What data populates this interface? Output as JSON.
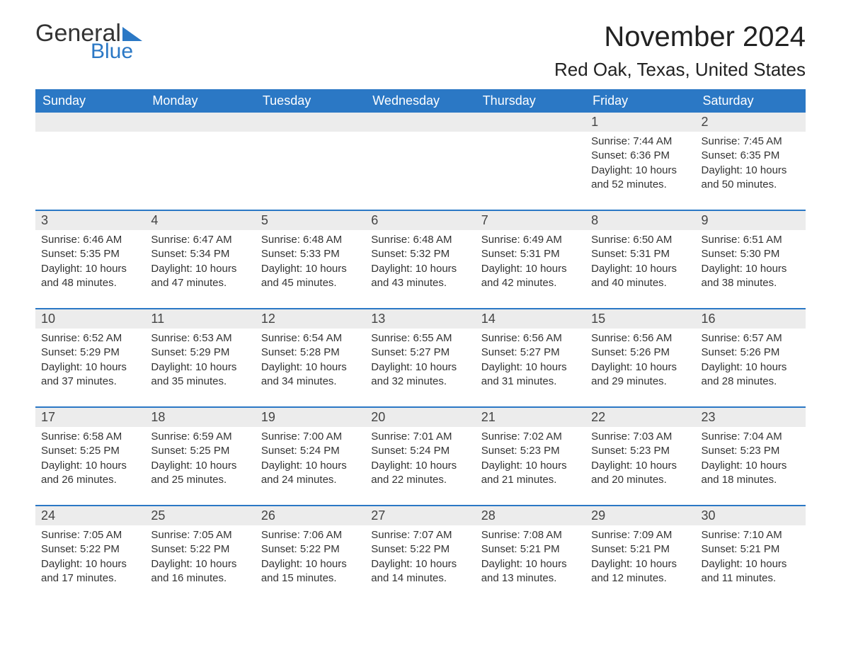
{
  "brand": {
    "word1": "General",
    "word2": "Blue"
  },
  "title": "November 2024",
  "location": "Red Oak, Texas, United States",
  "colors": {
    "accent": "#2b78c5",
    "header_text": "#ffffff",
    "day_header_bg": "#ececec",
    "text": "#333333",
    "background": "#ffffff"
  },
  "typography": {
    "title_fontsize": 40,
    "location_fontsize": 26,
    "weekday_fontsize": 18,
    "daynum_fontsize": 18,
    "body_fontsize": 15,
    "font_family": "Arial"
  },
  "layout": {
    "columns": 7,
    "rows": 5,
    "start_weekday": "Sunday"
  },
  "weekdays": [
    "Sunday",
    "Monday",
    "Tuesday",
    "Wednesday",
    "Thursday",
    "Friday",
    "Saturday"
  ],
  "weeks": [
    [
      {
        "empty": true
      },
      {
        "empty": true
      },
      {
        "empty": true
      },
      {
        "empty": true
      },
      {
        "empty": true
      },
      {
        "day": "1",
        "sunrise": "Sunrise: 7:44 AM",
        "sunset": "Sunset: 6:36 PM",
        "daylight": "Daylight: 10 hours and 52 minutes."
      },
      {
        "day": "2",
        "sunrise": "Sunrise: 7:45 AM",
        "sunset": "Sunset: 6:35 PM",
        "daylight": "Daylight: 10 hours and 50 minutes."
      }
    ],
    [
      {
        "day": "3",
        "sunrise": "Sunrise: 6:46 AM",
        "sunset": "Sunset: 5:35 PM",
        "daylight": "Daylight: 10 hours and 48 minutes."
      },
      {
        "day": "4",
        "sunrise": "Sunrise: 6:47 AM",
        "sunset": "Sunset: 5:34 PM",
        "daylight": "Daylight: 10 hours and 47 minutes."
      },
      {
        "day": "5",
        "sunrise": "Sunrise: 6:48 AM",
        "sunset": "Sunset: 5:33 PM",
        "daylight": "Daylight: 10 hours and 45 minutes."
      },
      {
        "day": "6",
        "sunrise": "Sunrise: 6:48 AM",
        "sunset": "Sunset: 5:32 PM",
        "daylight": "Daylight: 10 hours and 43 minutes."
      },
      {
        "day": "7",
        "sunrise": "Sunrise: 6:49 AM",
        "sunset": "Sunset: 5:31 PM",
        "daylight": "Daylight: 10 hours and 42 minutes."
      },
      {
        "day": "8",
        "sunrise": "Sunrise: 6:50 AM",
        "sunset": "Sunset: 5:31 PM",
        "daylight": "Daylight: 10 hours and 40 minutes."
      },
      {
        "day": "9",
        "sunrise": "Sunrise: 6:51 AM",
        "sunset": "Sunset: 5:30 PM",
        "daylight": "Daylight: 10 hours and 38 minutes."
      }
    ],
    [
      {
        "day": "10",
        "sunrise": "Sunrise: 6:52 AM",
        "sunset": "Sunset: 5:29 PM",
        "daylight": "Daylight: 10 hours and 37 minutes."
      },
      {
        "day": "11",
        "sunrise": "Sunrise: 6:53 AM",
        "sunset": "Sunset: 5:29 PM",
        "daylight": "Daylight: 10 hours and 35 minutes."
      },
      {
        "day": "12",
        "sunrise": "Sunrise: 6:54 AM",
        "sunset": "Sunset: 5:28 PM",
        "daylight": "Daylight: 10 hours and 34 minutes."
      },
      {
        "day": "13",
        "sunrise": "Sunrise: 6:55 AM",
        "sunset": "Sunset: 5:27 PM",
        "daylight": "Daylight: 10 hours and 32 minutes."
      },
      {
        "day": "14",
        "sunrise": "Sunrise: 6:56 AM",
        "sunset": "Sunset: 5:27 PM",
        "daylight": "Daylight: 10 hours and 31 minutes."
      },
      {
        "day": "15",
        "sunrise": "Sunrise: 6:56 AM",
        "sunset": "Sunset: 5:26 PM",
        "daylight": "Daylight: 10 hours and 29 minutes."
      },
      {
        "day": "16",
        "sunrise": "Sunrise: 6:57 AM",
        "sunset": "Sunset: 5:26 PM",
        "daylight": "Daylight: 10 hours and 28 minutes."
      }
    ],
    [
      {
        "day": "17",
        "sunrise": "Sunrise: 6:58 AM",
        "sunset": "Sunset: 5:25 PM",
        "daylight": "Daylight: 10 hours and 26 minutes."
      },
      {
        "day": "18",
        "sunrise": "Sunrise: 6:59 AM",
        "sunset": "Sunset: 5:25 PM",
        "daylight": "Daylight: 10 hours and 25 minutes."
      },
      {
        "day": "19",
        "sunrise": "Sunrise: 7:00 AM",
        "sunset": "Sunset: 5:24 PM",
        "daylight": "Daylight: 10 hours and 24 minutes."
      },
      {
        "day": "20",
        "sunrise": "Sunrise: 7:01 AM",
        "sunset": "Sunset: 5:24 PM",
        "daylight": "Daylight: 10 hours and 22 minutes."
      },
      {
        "day": "21",
        "sunrise": "Sunrise: 7:02 AM",
        "sunset": "Sunset: 5:23 PM",
        "daylight": "Daylight: 10 hours and 21 minutes."
      },
      {
        "day": "22",
        "sunrise": "Sunrise: 7:03 AM",
        "sunset": "Sunset: 5:23 PM",
        "daylight": "Daylight: 10 hours and 20 minutes."
      },
      {
        "day": "23",
        "sunrise": "Sunrise: 7:04 AM",
        "sunset": "Sunset: 5:23 PM",
        "daylight": "Daylight: 10 hours and 18 minutes."
      }
    ],
    [
      {
        "day": "24",
        "sunrise": "Sunrise: 7:05 AM",
        "sunset": "Sunset: 5:22 PM",
        "daylight": "Daylight: 10 hours and 17 minutes."
      },
      {
        "day": "25",
        "sunrise": "Sunrise: 7:05 AM",
        "sunset": "Sunset: 5:22 PM",
        "daylight": "Daylight: 10 hours and 16 minutes."
      },
      {
        "day": "26",
        "sunrise": "Sunrise: 7:06 AM",
        "sunset": "Sunset: 5:22 PM",
        "daylight": "Daylight: 10 hours and 15 minutes."
      },
      {
        "day": "27",
        "sunrise": "Sunrise: 7:07 AM",
        "sunset": "Sunset: 5:22 PM",
        "daylight": "Daylight: 10 hours and 14 minutes."
      },
      {
        "day": "28",
        "sunrise": "Sunrise: 7:08 AM",
        "sunset": "Sunset: 5:21 PM",
        "daylight": "Daylight: 10 hours and 13 minutes."
      },
      {
        "day": "29",
        "sunrise": "Sunrise: 7:09 AM",
        "sunset": "Sunset: 5:21 PM",
        "daylight": "Daylight: 10 hours and 12 minutes."
      },
      {
        "day": "30",
        "sunrise": "Sunrise: 7:10 AM",
        "sunset": "Sunset: 5:21 PM",
        "daylight": "Daylight: 10 hours and 11 minutes."
      }
    ]
  ]
}
